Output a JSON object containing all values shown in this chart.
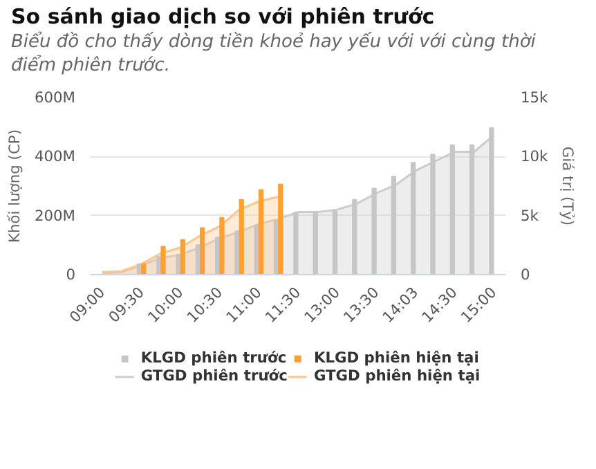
{
  "chart_data": {
    "type": "bar",
    "title": "So sánh giao dịch so với phiên trước",
    "subtitle": "Biểu đồ cho thấy dòng tiền khoẻ hay yếu với với cùng thời điểm phiên trước.",
    "ylabel": "Khối lượng (CP)",
    "y2label": "Giá trị (Tỷ)",
    "categories": [
      "09:00",
      null,
      "09:30",
      null,
      "10:00",
      null,
      "10:30",
      null,
      "11:00",
      null,
      "11:30",
      null,
      "13:00",
      null,
      "13:30",
      null,
      "14:03",
      null,
      "14:30",
      null,
      "15:00"
    ],
    "series": [
      {
        "name": "KLGD phiên trước",
        "color": "#c6c6c6",
        "values": [
          null,
          null,
          36,
          60,
          68,
          100,
          126,
          147,
          167,
          183,
          210,
          210,
          213,
          254,
          292,
          332,
          379,
          407,
          439,
          439,
          497
        ]
      },
      {
        "name": "KLGD phiên hiện tại",
        "color": "#ffa033",
        "values": [
          null,
          null,
          36,
          95,
          118,
          158,
          193,
          254,
          287,
          306,
          null,
          null,
          null,
          null,
          null,
          null,
          null,
          null,
          null,
          null,
          null
        ]
      },
      {
        "name": "GTGD phiên trước",
        "type": "area",
        "axis": "y2",
        "color": "#cccccc",
        "values": [
          0.1,
          0.2,
          0.8,
          1.4,
          1.7,
          2.3,
          3.1,
          3.6,
          4.3,
          4.7,
          5.3,
          5.3,
          5.5,
          6.0,
          6.9,
          7.6,
          8.8,
          9.6,
          10.4,
          10.4,
          11.8
        ]
      },
      {
        "name": "GTGD phiên hiện tại",
        "type": "area",
        "axis": "y2",
        "color": "#ffc58a",
        "values": [
          0.2,
          0.3,
          0.9,
          1.8,
          2.3,
          3.3,
          4.1,
          5.5,
          6.2,
          6.6,
          null,
          null,
          null,
          null,
          null,
          null,
          null,
          null,
          null,
          null,
          null
        ]
      }
    ],
    "ylim": [
      0,
      600
    ],
    "yticks": [
      {
        "value": 0,
        "label": "0"
      },
      {
        "value": 200,
        "label": "200M"
      },
      {
        "value": 400,
        "label": "400M"
      },
      {
        "value": 600,
        "label": "600M"
      }
    ],
    "y2lim": [
      0,
      15
    ],
    "y2ticks": [
      {
        "value": 0,
        "label": "0"
      },
      {
        "value": 5,
        "label": "5k"
      },
      {
        "value": 10,
        "label": "10k"
      },
      {
        "value": 15,
        "label": "15k"
      }
    ],
    "grid": "y",
    "legend": "bottom"
  }
}
